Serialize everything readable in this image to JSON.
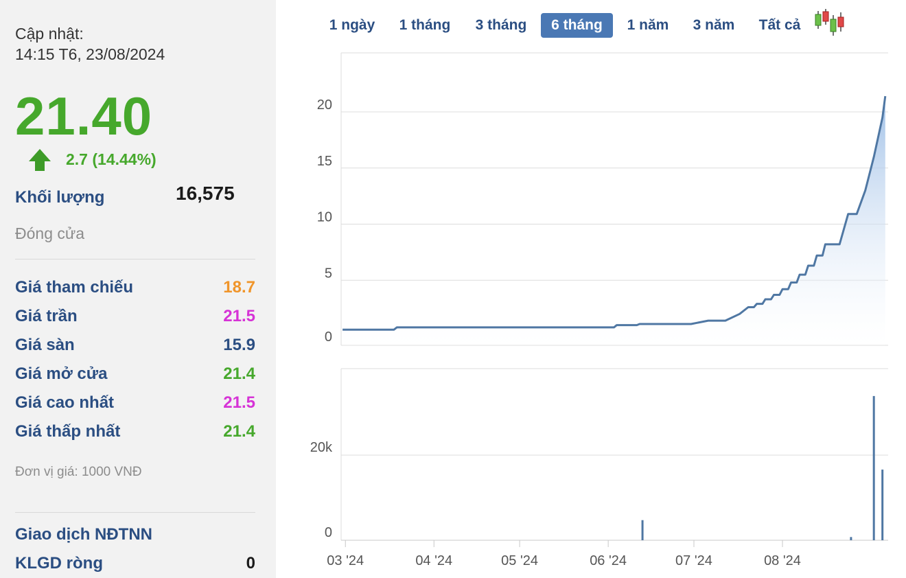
{
  "update": {
    "label": "Cập nhật:",
    "time": "14:15 T6, 23/08/2024"
  },
  "price": "21.40",
  "change": "2.7 (14.44%)",
  "volume": {
    "label": "Khối lượng",
    "value": "16,575"
  },
  "status": "Đóng cửa",
  "stats": [
    {
      "label": "Giá tham chiếu",
      "value": "18.7",
      "color": "#f0952a"
    },
    {
      "label": "Giá trần",
      "value": "21.5",
      "color": "#d633d6"
    },
    {
      "label": "Giá sàn",
      "value": "15.9",
      "color": "#2b4e82"
    },
    {
      "label": "Giá mở cửa",
      "value": "21.4",
      "color": "#46a82c"
    },
    {
      "label": "Giá cao nhất",
      "value": "21.5",
      "color": "#d633d6"
    },
    {
      "label": "Giá thấp nhất",
      "value": "21.4",
      "color": "#46a82c"
    }
  ],
  "unit_note": "Đơn vị giá: 1000 VNĐ",
  "foreign": {
    "title": "Giao dịch NĐTNN",
    "net_label": "KLGD ròng",
    "net_value": "0"
  },
  "range_tabs": [
    "1 ngày",
    "1 tháng",
    "3 tháng",
    "6 tháng",
    "1 năm",
    "3 năm",
    "Tất cả"
  ],
  "active_tab": "6 tháng",
  "icons": {
    "up_arrow": "green-up-arrow-icon",
    "candlestick": "candlestick-icon"
  },
  "colors": {
    "up": "#46a82c",
    "label": "#2b4e82",
    "line": "#4f77a3",
    "active_tab": "#4a78b4"
  },
  "chart_data": {
    "type": "area",
    "price_yticks": [
      "0",
      "5",
      "10",
      "15",
      "20"
    ],
    "price_ylim": [
      0,
      23
    ],
    "volume_yticks": [
      "0",
      "20k"
    ],
    "volume_ylim": [
      0,
      40000
    ],
    "x_ticks": [
      {
        "label": "03 '24",
        "t": 1
      },
      {
        "label": "04 '24",
        "t": 32
      },
      {
        "label": "05 '24",
        "t": 62
      },
      {
        "label": "06 '24",
        "t": 93
      },
      {
        "label": "07 '24",
        "t": 123
      },
      {
        "label": "08 '24",
        "t": 154
      }
    ],
    "price_series": [
      [
        0,
        0.6
      ],
      [
        18,
        0.6
      ],
      [
        19,
        0.8
      ],
      [
        95,
        0.8
      ],
      [
        96,
        1.0
      ],
      [
        103,
        1.0
      ],
      [
        104,
        1.1
      ],
      [
        122,
        1.1
      ],
      [
        128,
        1.4
      ],
      [
        134,
        1.4
      ],
      [
        139,
        2.0
      ],
      [
        142,
        2.6
      ],
      [
        144,
        2.6
      ],
      [
        145,
        2.9
      ],
      [
        147,
        2.9
      ],
      [
        148,
        3.3
      ],
      [
        150,
        3.3
      ],
      [
        151,
        3.7
      ],
      [
        153,
        3.7
      ],
      [
        154,
        4.2
      ],
      [
        156,
        4.2
      ],
      [
        157,
        4.8
      ],
      [
        159,
        4.8
      ],
      [
        160,
        5.5
      ],
      [
        162,
        5.5
      ],
      [
        163,
        6.3
      ],
      [
        165,
        6.3
      ],
      [
        166,
        7.2
      ],
      [
        168,
        7.2
      ],
      [
        169,
        8.2
      ],
      [
        173,
        8.2
      ],
      [
        174,
        8.2
      ],
      [
        177,
        10.9
      ],
      [
        180,
        10.9
      ],
      [
        183,
        13.0
      ],
      [
        186,
        16.0
      ],
      [
        189,
        19.5
      ],
      [
        190,
        21.4
      ]
    ],
    "volume_bars": [
      {
        "t": 105,
        "v": 4600
      },
      {
        "t": 178,
        "v": 600
      },
      {
        "t": 186,
        "v": 34000
      },
      {
        "t": 189,
        "v": 16575
      }
    ]
  }
}
